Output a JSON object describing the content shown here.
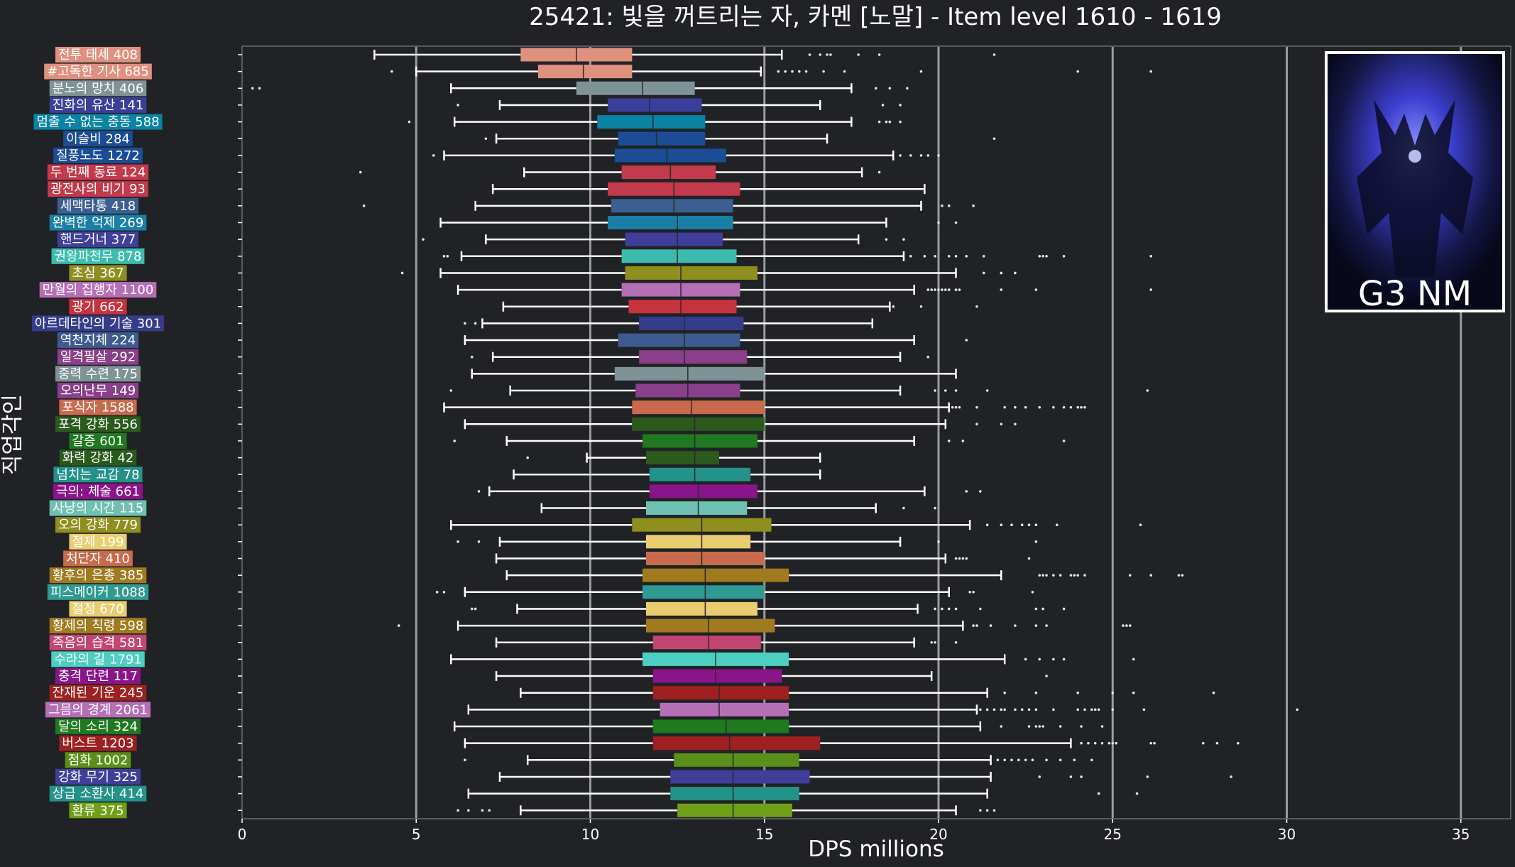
{
  "chart_data": {
    "type": "box",
    "title": "25421: 빛을 꺼트리는 자, 카멘 [노말] - Item level 1610 - 1619",
    "xlabel": "DPS millions",
    "ylabel": "직업각인",
    "xlim": [
      0,
      36.5
    ],
    "xticks": [
      0,
      5,
      10,
      15,
      20,
      25,
      30,
      35
    ],
    "grid": "vertical major gridlines at 5, 10, 15, 20, 25, 30, 35",
    "badge_text": "G3 NM",
    "categories": [
      {
        "label": "전투 태세 408",
        "color": "#e0907e",
        "whislo": 3.8,
        "q1": 8.0,
        "med": 9.6,
        "q3": 11.2,
        "whishi": 15.5,
        "fliers": [
          16.3,
          16.6,
          16.8,
          16.9,
          17.7,
          18.3,
          21.6
        ]
      },
      {
        "label": "#고독한 기사 685",
        "color": "#e0907e",
        "whislo": 5.0,
        "q1": 8.5,
        "med": 9.8,
        "q3": 11.2,
        "whishi": 14.9,
        "fliers": [
          4.3,
          15.4,
          15.6,
          15.8,
          16.0,
          16.2,
          16.7,
          17.3,
          19.5,
          24.0,
          26.1
        ]
      },
      {
        "label": "분노의 망치 406",
        "color": "#7f9396",
        "whislo": 6.0,
        "q1": 9.6,
        "med": 11.5,
        "q3": 13.0,
        "whishi": 17.5,
        "fliers": [
          0.3,
          0.5,
          18.2,
          18.6,
          19.1
        ]
      },
      {
        "label": "진화의 유산 141",
        "color": "#3b3f9a",
        "whislo": 7.4,
        "q1": 10.5,
        "med": 11.7,
        "q3": 13.2,
        "whishi": 16.6,
        "fliers": [
          6.2,
          18.4,
          18.9
        ]
      },
      {
        "label": "멈출 수 없는 충동 588",
        "color": "#0b83a5",
        "whislo": 6.1,
        "q1": 10.2,
        "med": 11.8,
        "q3": 13.3,
        "whishi": 17.5,
        "fliers": [
          4.8,
          18.3,
          18.5,
          18.6,
          18.9
        ]
      },
      {
        "label": "이슬비 284",
        "color": "#1a4d96",
        "whislo": 7.3,
        "q1": 10.8,
        "med": 11.9,
        "q3": 13.3,
        "whishi": 16.8,
        "fliers": [
          7.0,
          21.6
        ]
      },
      {
        "label": "질풍노도 1272",
        "color": "#1a4d96",
        "whislo": 5.8,
        "q1": 10.7,
        "med": 12.2,
        "q3": 13.9,
        "whishi": 18.7,
        "fliers": [
          5.5,
          18.9,
          19.2,
          19.5,
          19.7,
          20.0
        ]
      },
      {
        "label": "두 번째 동료 124",
        "color": "#c23a4b",
        "whislo": 8.1,
        "q1": 10.9,
        "med": 12.3,
        "q3": 13.6,
        "whishi": 17.8,
        "fliers": [
          3.4,
          18.3
        ]
      },
      {
        "label": "광전사의 비기 93",
        "color": "#c23a4b",
        "whislo": 7.2,
        "q1": 10.5,
        "med": 12.4,
        "q3": 14.3,
        "whishi": 19.6,
        "fliers": []
      },
      {
        "label": "세맥타통 418",
        "color": "#3b5f91",
        "whislo": 6.7,
        "q1": 10.6,
        "med": 12.4,
        "q3": 14.1,
        "whishi": 19.5,
        "fliers": [
          3.5,
          20.1,
          20.3,
          21.0
        ]
      },
      {
        "label": "완벽한 억제 269",
        "color": "#1a7fa6",
        "whislo": 5.7,
        "q1": 10.5,
        "med": 12.5,
        "q3": 14.1,
        "whishi": 18.5,
        "fliers": [
          20.0,
          20.5
        ]
      },
      {
        "label": "핸드거너 377",
        "color": "#3f3f9a",
        "whislo": 7.0,
        "q1": 11.0,
        "med": 12.5,
        "q3": 13.8,
        "whishi": 17.7,
        "fliers": [
          5.2,
          18.5,
          19.0
        ]
      },
      {
        "label": "권왕파천무 878",
        "color": "#3dbcae",
        "whislo": 6.3,
        "q1": 10.9,
        "med": 12.5,
        "q3": 14.2,
        "whishi": 19.0,
        "fliers": [
          5.8,
          5.9,
          19.2,
          19.6,
          19.9,
          20.3,
          20.5,
          20.8,
          21.3,
          22.9,
          23.0,
          23.1,
          23.6,
          26.1
        ]
      },
      {
        "label": "초심 367",
        "color": "#8f8f1f",
        "whislo": 5.7,
        "q1": 11.0,
        "med": 12.6,
        "q3": 14.8,
        "whishi": 20.5,
        "fliers": [
          4.6,
          21.3,
          21.8,
          22.2
        ]
      },
      {
        "label": "만월의 집행자 1100",
        "color": "#b56fb5",
        "whislo": 6.2,
        "q1": 10.9,
        "med": 12.6,
        "q3": 14.3,
        "whishi": 19.3,
        "fliers": [
          19.7,
          19.8,
          19.9,
          20.0,
          20.1,
          20.2,
          20.3,
          20.5,
          20.6,
          21.8,
          22.8,
          26.1
        ]
      },
      {
        "label": "광기 662",
        "color": "#c7323f",
        "whislo": 7.5,
        "q1": 11.1,
        "med": 12.6,
        "q3": 14.2,
        "whishi": 18.6,
        "fliers": [
          18.7,
          19.5,
          21.1
        ]
      },
      {
        "label": "아르데타인의 기술 301",
        "color": "#353c8a",
        "whislo": 6.9,
        "q1": 11.4,
        "med": 12.7,
        "q3": 14.4,
        "whishi": 18.1,
        "fliers": [
          6.4,
          6.7
        ]
      },
      {
        "label": "역천지체 224",
        "color": "#3e5a8f",
        "whislo": 6.4,
        "q1": 10.8,
        "med": 12.7,
        "q3": 14.3,
        "whishi": 19.3,
        "fliers": [
          20.8
        ]
      },
      {
        "label": "일격필살 292",
        "color": "#8a3f8a",
        "whislo": 7.2,
        "q1": 11.4,
        "med": 12.7,
        "q3": 14.5,
        "whishi": 18.9,
        "fliers": [
          6.6,
          19.7
        ]
      },
      {
        "label": "중력 수련 175",
        "color": "#7f9396",
        "whislo": 6.6,
        "q1": 10.7,
        "med": 12.8,
        "q3": 15.0,
        "whishi": 20.5,
        "fliers": []
      },
      {
        "label": "오의난무 149",
        "color": "#8a3f8a",
        "whislo": 7.7,
        "q1": 11.3,
        "med": 12.8,
        "q3": 14.3,
        "whishi": 18.9,
        "fliers": [
          6.0,
          19.9,
          20.2,
          20.5,
          21.4,
          26.0
        ]
      },
      {
        "label": "포식자 1588",
        "color": "#c86a4c",
        "whislo": 5.8,
        "q1": 11.2,
        "med": 12.9,
        "q3": 15.0,
        "whishi": 20.3,
        "fliers": [
          20.4,
          20.5,
          20.6,
          21.1,
          21.9,
          22.2,
          22.5,
          22.9,
          23.3,
          23.6,
          23.8,
          24.0,
          24.1,
          24.2
        ]
      },
      {
        "label": "포격 강화 556",
        "color": "#2a5a1c",
        "whislo": 6.4,
        "q1": 11.2,
        "med": 13.0,
        "q3": 15.0,
        "whishi": 20.2,
        "fliers": [
          21.1,
          21.8,
          22.2
        ]
      },
      {
        "label": "갈증 601",
        "color": "#1f7a1f",
        "whislo": 7.6,
        "q1": 11.5,
        "med": 13.0,
        "q3": 14.8,
        "whishi": 19.3,
        "fliers": [
          6.1,
          20.3,
          20.7,
          23.6
        ]
      },
      {
        "label": "화력 강화 42",
        "color": "#2a5a1c",
        "whislo": 9.9,
        "q1": 11.6,
        "med": 13.0,
        "q3": 13.7,
        "whishi": 16.6,
        "fliers": [
          8.2
        ]
      },
      {
        "label": "넘치는 교감 78",
        "color": "#239289",
        "whislo": 7.8,
        "q1": 11.7,
        "med": 13.0,
        "q3": 14.6,
        "whishi": 16.6,
        "fliers": []
      },
      {
        "label": "극의: 체술 661",
        "color": "#8a148a",
        "whislo": 7.1,
        "q1": 11.7,
        "med": 13.1,
        "q3": 14.8,
        "whishi": 19.6,
        "fliers": [
          6.8,
          20.8,
          21.2
        ]
      },
      {
        "label": "사냥의 시간 115",
        "color": "#6fbfb3",
        "whislo": 8.6,
        "q1": 11.6,
        "med": 13.1,
        "q3": 14.5,
        "whishi": 18.2,
        "fliers": [
          19.0,
          19.9
        ]
      },
      {
        "label": "오의 강화 779",
        "color": "#8f8f1f",
        "whislo": 6.0,
        "q1": 11.2,
        "med": 13.2,
        "q3": 15.2,
        "whishi": 20.9,
        "fliers": [
          21.4,
          21.8,
          22.1,
          22.4,
          22.6,
          22.8,
          23.4,
          25.8
        ]
      },
      {
        "label": "절제 199",
        "color": "#e9cd71",
        "whislo": 7.4,
        "q1": 11.6,
        "med": 13.2,
        "q3": 14.6,
        "whishi": 18.9,
        "fliers": [
          6.2,
          6.8,
          20.0,
          22.8
        ]
      },
      {
        "label": "처단자 410",
        "color": "#c86a4c",
        "whislo": 7.3,
        "q1": 11.6,
        "med": 13.2,
        "q3": 15.0,
        "whishi": 20.2,
        "fliers": [
          20.5,
          20.6,
          20.7,
          20.8,
          22.6
        ]
      },
      {
        "label": "황후의 은총 385",
        "color": "#a07a1f",
        "whislo": 7.6,
        "q1": 11.5,
        "med": 13.3,
        "q3": 15.7,
        "whishi": 21.8,
        "fliers": [
          22.9,
          23.0,
          23.1,
          23.3,
          23.5,
          23.8,
          23.9,
          24.0,
          24.2,
          25.5,
          26.1,
          26.9,
          27.0
        ]
      },
      {
        "label": "피스메이커 1088",
        "color": "#2f9a91",
        "whislo": 6.4,
        "q1": 11.5,
        "med": 13.3,
        "q3": 15.0,
        "whishi": 20.3,
        "fliers": [
          5.6,
          5.8,
          20.9,
          21.0,
          22.7
        ]
      },
      {
        "label": "절정 670",
        "color": "#e9cd71",
        "whislo": 7.9,
        "q1": 11.6,
        "med": 13.3,
        "q3": 14.8,
        "whishi": 19.4,
        "fliers": [
          6.6,
          6.7,
          19.9,
          20.1,
          20.3,
          20.5,
          21.2,
          22.8,
          23.0,
          23.6
        ]
      },
      {
        "label": "황제의 칙령 598",
        "color": "#a07a1f",
        "whislo": 6.2,
        "q1": 11.6,
        "med": 13.4,
        "q3": 15.3,
        "whishi": 20.7,
        "fliers": [
          4.5,
          21.0,
          21.1,
          21.5,
          22.2,
          22.8,
          23.1,
          25.3,
          25.4,
          25.5
        ]
      },
      {
        "label": "죽음의 습격 581",
        "color": "#c24670",
        "whislo": 7.3,
        "q1": 11.8,
        "med": 13.4,
        "q3": 14.9,
        "whishi": 19.3,
        "fliers": [
          19.8,
          19.9,
          20.5
        ]
      },
      {
        "label": "수라의 길 1791",
        "color": "#4ccfc2",
        "whislo": 6.0,
        "q1": 11.5,
        "med": 13.6,
        "q3": 15.7,
        "whishi": 21.9,
        "fliers": [
          22.5,
          22.9,
          23.3,
          23.6,
          25.6
        ]
      },
      {
        "label": "충격 단련 117",
        "color": "#8a148a",
        "whislo": 7.3,
        "q1": 11.8,
        "med": 13.6,
        "q3": 15.5,
        "whishi": 19.8,
        "fliers": [
          23.1
        ]
      },
      {
        "label": "잔재된 기운 245",
        "color": "#9e2020",
        "whislo": 8.0,
        "q1": 11.8,
        "med": 13.7,
        "q3": 15.7,
        "whishi": 21.4,
        "fliers": [
          21.9,
          22.8,
          24.0,
          25.0,
          25.6,
          27.9
        ]
      },
      {
        "label": "그믐의 경계 2061",
        "color": "#b56fb5",
        "whislo": 6.5,
        "q1": 12.0,
        "med": 13.7,
        "q3": 15.7,
        "whishi": 21.1,
        "fliers": [
          21.2,
          21.4,
          21.6,
          21.8,
          21.9,
          22.2,
          22.4,
          22.6,
          22.8,
          23.3,
          24.0,
          24.2,
          24.4,
          24.5,
          24.6,
          25.0,
          25.9,
          30.3
        ]
      },
      {
        "label": "달의 소리 324",
        "color": "#1f7a1f",
        "whislo": 6.1,
        "q1": 11.8,
        "med": 13.9,
        "q3": 15.7,
        "whishi": 21.2,
        "fliers": [
          21.8,
          22.6,
          22.8,
          22.9,
          23.0,
          23.5,
          24.1,
          24.7
        ]
      },
      {
        "label": "버스트 1203",
        "color": "#9e2020",
        "whislo": 6.4,
        "q1": 11.8,
        "med": 14.0,
        "q3": 16.6,
        "whishi": 23.8,
        "fliers": [
          24.1,
          24.3,
          24.5,
          24.7,
          24.9,
          25.0,
          25.1,
          26.1,
          26.2,
          27.6,
          28.0,
          28.6
        ]
      },
      {
        "label": "점화 1002",
        "color": "#5a8f19",
        "whislo": 8.2,
        "q1": 12.4,
        "med": 14.1,
        "q3": 16.0,
        "whishi": 21.5,
        "fliers": [
          6.4,
          21.7,
          21.9,
          22.1,
          22.3,
          22.5,
          22.7,
          23.1,
          23.5,
          23.9,
          24.4
        ]
      },
      {
        "label": "강화 무기 325",
        "color": "#3f3f9a",
        "whislo": 7.4,
        "q1": 12.3,
        "med": 14.1,
        "q3": 16.3,
        "whishi": 21.5,
        "fliers": [
          22.9,
          23.8,
          24.1,
          26.0,
          28.4
        ]
      },
      {
        "label": "상급 소환사 414",
        "color": "#239289",
        "whislo": 6.5,
        "q1": 12.3,
        "med": 14.1,
        "q3": 16.0,
        "whishi": 21.4,
        "fliers": [
          24.6,
          25.7
        ]
      },
      {
        "label": "환류 375",
        "color": "#6f9f19",
        "whislo": 8.0,
        "q1": 12.5,
        "med": 14.1,
        "q3": 15.8,
        "whishi": 20.5,
        "fliers": [
          6.2,
          6.5,
          6.9,
          7.1,
          21.2,
          21.4,
          21.6
        ]
      }
    ]
  }
}
